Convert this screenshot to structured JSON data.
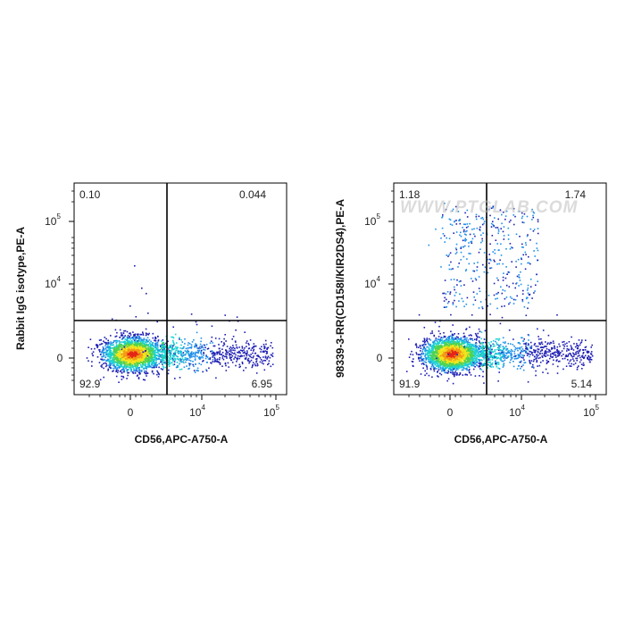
{
  "watermark": "WWW.PTGLAB.COM",
  "chart_data": [
    {
      "type": "scatter",
      "subtype": "flow-cytometry-density-dot-plot",
      "xlabel": "CD56,APC-A750-A",
      "ylabel": "Rabbit IgG isotype,PE-A",
      "x_scale": "biexponential",
      "y_scale": "biexponential",
      "x_ticks": [
        {
          "base": "0",
          "exp": ""
        },
        {
          "base": "10",
          "exp": "4"
        },
        {
          "base": "10",
          "exp": "5"
        }
      ],
      "y_ticks": [
        {
          "base": "0",
          "exp": ""
        },
        {
          "base": "10",
          "exp": "4"
        },
        {
          "base": "10",
          "exp": "5"
        }
      ],
      "quadrants": {
        "top_left": "0.10",
        "top_right": "0.044",
        "bottom_left": "92.9",
        "bottom_right": "6.95"
      },
      "colormap": [
        "#1e1eb4",
        "#1f8fe8",
        "#19d2d2",
        "#4fd24f",
        "#f2e51c",
        "#f39a16",
        "#e52516"
      ]
    },
    {
      "type": "scatter",
      "subtype": "flow-cytometry-density-dot-plot",
      "xlabel": "CD56,APC-A750-A",
      "ylabel": "98339-3-RR(CD158I/KIR2DS4),PE-A",
      "x_scale": "biexponential",
      "y_scale": "biexponential",
      "x_ticks": [
        {
          "base": "0",
          "exp": ""
        },
        {
          "base": "10",
          "exp": "4"
        },
        {
          "base": "10",
          "exp": "5"
        }
      ],
      "y_ticks": [
        {
          "base": "0",
          "exp": ""
        },
        {
          "base": "10",
          "exp": "4"
        },
        {
          "base": "10",
          "exp": "5"
        }
      ],
      "quadrants": {
        "top_left": "1.18",
        "top_right": "1.74",
        "bottom_left": "91.9",
        "bottom_right": "5.14"
      },
      "colormap": [
        "#1e1eb4",
        "#1f8fe8",
        "#19d2d2",
        "#4fd24f",
        "#f2e51c",
        "#f39a16",
        "#e52516"
      ]
    }
  ]
}
